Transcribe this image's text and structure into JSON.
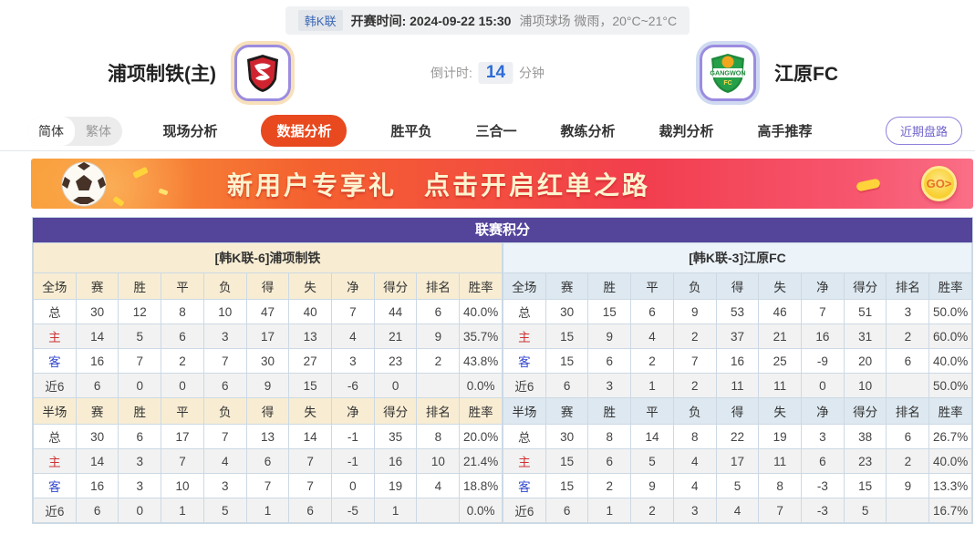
{
  "match_header": {
    "league": "韩K联",
    "kickoff": "开赛时间: 2024-09-22 15:30",
    "venue_weather": "浦项球场 微雨，20°C~21°C"
  },
  "teams": {
    "home": {
      "name": "浦项制铁(主)",
      "logo": "pohang-steelers-badge",
      "badge_text": "S"
    },
    "away": {
      "name": "江原FC",
      "logo": "gangwon-fc-badge",
      "badge_text": "GANGWON"
    }
  },
  "countdown": {
    "label": "倒计时:",
    "value": "14",
    "unit": "分钟"
  },
  "lang_toggle": {
    "simplified": "简体",
    "traditional": "繁体"
  },
  "nav": {
    "tabs": [
      {
        "label": "现场分析",
        "active": false
      },
      {
        "label": "数据分析",
        "active": true
      },
      {
        "label": "胜平负",
        "active": false
      },
      {
        "label": "三合一",
        "active": false
      },
      {
        "label": "教练分析",
        "active": false
      },
      {
        "label": "裁判分析",
        "active": false
      },
      {
        "label": "高手推荐",
        "active": false
      }
    ],
    "recent_button": "近期盘路"
  },
  "banner": {
    "text1": "新用户专享礼",
    "text2": "点击开启红单之路",
    "go_label": "GO>"
  },
  "league_table": {
    "title": "联赛积分",
    "columns_full": [
      "全场",
      "赛",
      "胜",
      "平",
      "负",
      "得",
      "失",
      "净",
      "得分",
      "排名",
      "胜率"
    ],
    "columns_half": [
      "半场",
      "赛",
      "胜",
      "平",
      "负",
      "得",
      "失",
      "净",
      "得分",
      "排名",
      "胜率"
    ],
    "home": {
      "header": "[韩K联-6]浦项制铁",
      "full": [
        [
          "总",
          "30",
          "12",
          "8",
          "10",
          "47",
          "40",
          "7",
          "44",
          "6",
          "40.0%"
        ],
        [
          "主",
          "14",
          "5",
          "6",
          "3",
          "17",
          "13",
          "4",
          "21",
          "9",
          "35.7%"
        ],
        [
          "客",
          "16",
          "7",
          "2",
          "7",
          "30",
          "27",
          "3",
          "23",
          "2",
          "43.8%"
        ],
        [
          "近6",
          "6",
          "0",
          "0",
          "6",
          "9",
          "15",
          "-6",
          "0",
          "",
          "0.0%"
        ]
      ],
      "half": [
        [
          "总",
          "30",
          "6",
          "17",
          "7",
          "13",
          "14",
          "-1",
          "35",
          "8",
          "20.0%"
        ],
        [
          "主",
          "14",
          "3",
          "7",
          "4",
          "6",
          "7",
          "-1",
          "16",
          "10",
          "21.4%"
        ],
        [
          "客",
          "16",
          "3",
          "10",
          "3",
          "7",
          "7",
          "0",
          "19",
          "4",
          "18.8%"
        ],
        [
          "近6",
          "6",
          "0",
          "1",
          "5",
          "1",
          "6",
          "-5",
          "1",
          "",
          "0.0%"
        ]
      ]
    },
    "away": {
      "header": "[韩K联-3]江原FC",
      "full": [
        [
          "总",
          "30",
          "15",
          "6",
          "9",
          "53",
          "46",
          "7",
          "51",
          "3",
          "50.0%"
        ],
        [
          "主",
          "15",
          "9",
          "4",
          "2",
          "37",
          "21",
          "16",
          "31",
          "2",
          "60.0%"
        ],
        [
          "客",
          "15",
          "6",
          "2",
          "7",
          "16",
          "25",
          "-9",
          "20",
          "6",
          "40.0%"
        ],
        [
          "近6",
          "6",
          "3",
          "1",
          "2",
          "11",
          "11",
          "0",
          "10",
          "",
          "50.0%"
        ]
      ],
      "half": [
        [
          "总",
          "30",
          "8",
          "14",
          "8",
          "22",
          "19",
          "3",
          "38",
          "6",
          "26.7%"
        ],
        [
          "主",
          "15",
          "6",
          "5",
          "4",
          "17",
          "11",
          "6",
          "23",
          "2",
          "40.0%"
        ],
        [
          "客",
          "15",
          "2",
          "9",
          "4",
          "5",
          "8",
          "-3",
          "15",
          "9",
          "13.3%"
        ],
        [
          "近6",
          "6",
          "1",
          "2",
          "3",
          "4",
          "7",
          "-3",
          "5",
          "",
          "16.7%"
        ]
      ]
    }
  },
  "colors": {
    "accent_purple": "#54459b",
    "active_tab": "#e8491f",
    "home_header_bg": "#f8edd3",
    "away_header_bg": "#dde8f0",
    "home_label_red": "#cf3333",
    "away_label_blue": "#3347cf",
    "countdown_blue": "#2e6cd6"
  }
}
